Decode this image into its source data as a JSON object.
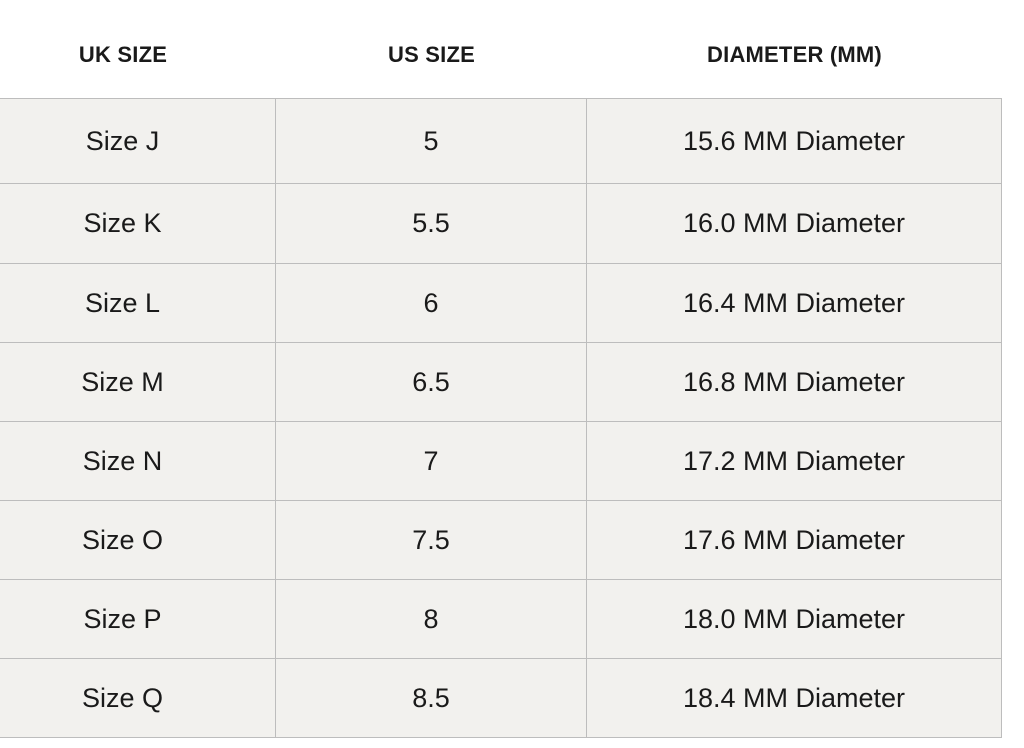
{
  "table": {
    "headers": [
      "UK SIZE",
      "US SIZE",
      "DIAMETER (MM)"
    ],
    "rows": [
      [
        "Size J",
        "5",
        "15.6 MM Diameter"
      ],
      [
        "Size K",
        "5.5",
        "16.0 MM Diameter"
      ],
      [
        "Size L",
        "6",
        "16.4 MM Diameter"
      ],
      [
        "Size M",
        "6.5",
        "16.8 MM Diameter"
      ],
      [
        "Size N",
        "7",
        "17.2 MM Diameter"
      ],
      [
        "Size O",
        "7.5",
        "17.6 MM Diameter"
      ],
      [
        "Size P",
        "8",
        "18.0 MM Diameter"
      ],
      [
        "Size Q",
        "8.5",
        "18.4 MM Diameter"
      ]
    ]
  }
}
